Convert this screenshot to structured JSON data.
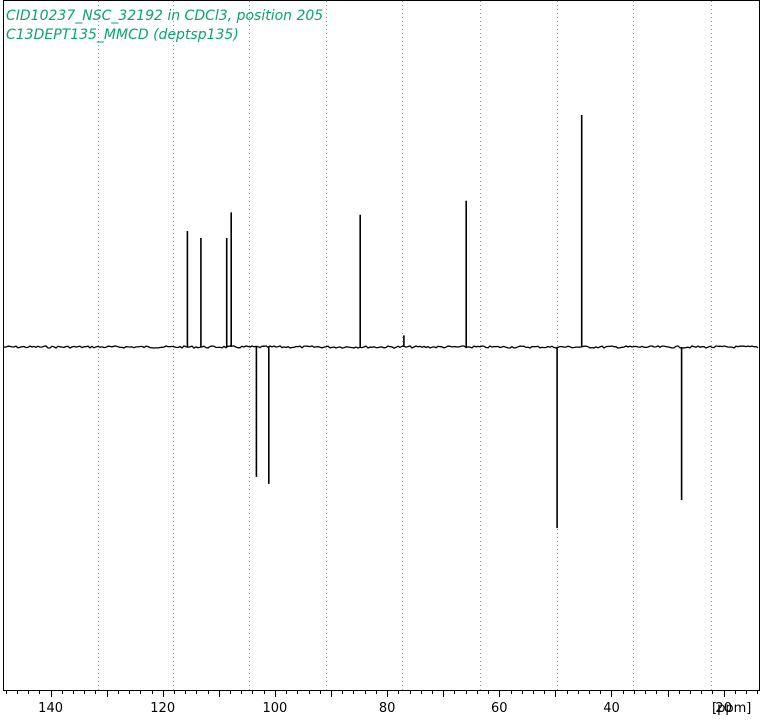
{
  "chart_data": {
    "type": "line",
    "title_lines": [
      "CID10237_NSC_32192 in CDCl3, position 205",
      "C13DEPT135_MMCD (deptsp135)"
    ],
    "xlabel": "[ppm]",
    "ylabel": "",
    "x_reversed": true,
    "xlim": [
      148.3,
      13.7
    ],
    "ylim": [
      -1.47,
      1.47
    ],
    "x_ticks": [
      140,
      120,
      100,
      80,
      60,
      40,
      20
    ],
    "x_tick_labels": [
      "140",
      "120",
      "100",
      "80",
      "60",
      "40",
      "20"
    ],
    "minor_tick_step": 2,
    "grid_lines_ppm": [
      131.6,
      118.1,
      104.6,
      90.9,
      77.3,
      63.5,
      49.8,
      36.1,
      22.2
    ],
    "grid": "vertical-dotted",
    "peaks": [
      {
        "ppm": 115.6,
        "intensity": 0.5
      },
      {
        "ppm": 113.2,
        "intensity": 0.47
      },
      {
        "ppm": 108.6,
        "intensity": 0.47
      },
      {
        "ppm": 107.8,
        "intensity": 0.58
      },
      {
        "ppm": 103.3,
        "intensity": -0.56
      },
      {
        "ppm": 101.1,
        "intensity": -0.59
      },
      {
        "ppm": 84.8,
        "intensity": 0.57
      },
      {
        "ppm": 77.0,
        "intensity": 0.05
      },
      {
        "ppm": 65.9,
        "intensity": 0.63
      },
      {
        "ppm": 49.7,
        "intensity": -0.78
      },
      {
        "ppm": 45.3,
        "intensity": 1.0
      },
      {
        "ppm": 27.5,
        "intensity": -0.66
      }
    ],
    "colors": {
      "title": "#0aa46e",
      "spectrum": "#000000",
      "grid": "#9a9a9a",
      "frame": "#000000"
    }
  }
}
